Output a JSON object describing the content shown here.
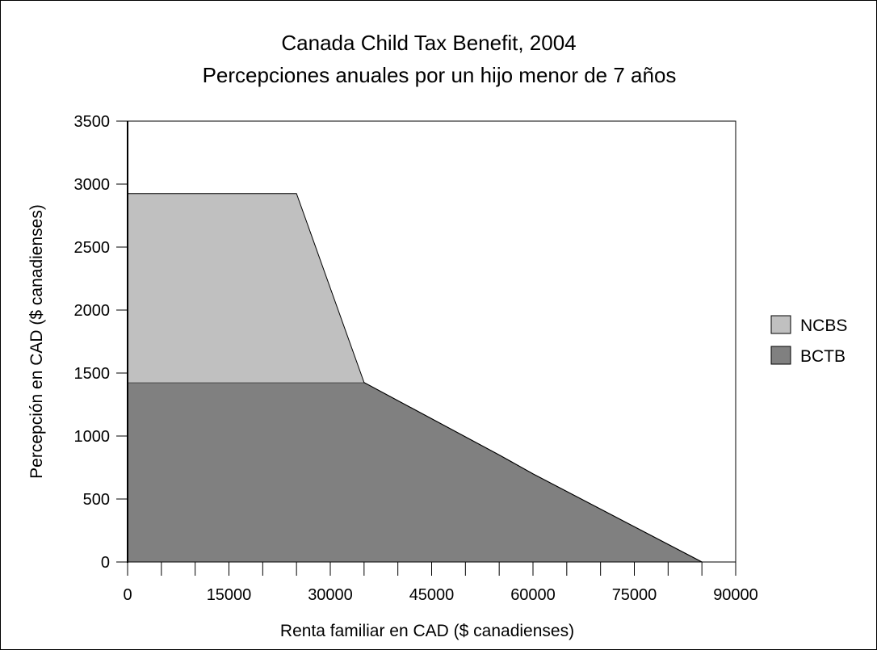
{
  "chart_data": {
    "type": "area",
    "title": "Canada Child Tax Benefit, 2004",
    "subtitle": "Percepciones anuales por un hijo menor de 7 años",
    "xlabel": "Renta familiar en CAD ($ canadienses)",
    "ylabel": "Percepción en CAD ($ canadienses)",
    "xlim": [
      0,
      90000
    ],
    "ylim": [
      0,
      3500
    ],
    "x_ticks": [
      0,
      15000,
      30000,
      45000,
      60000,
      75000,
      90000
    ],
    "y_ticks": [
      0,
      500,
      1000,
      1500,
      2000,
      2500,
      3000,
      3500
    ],
    "x_minor_step": 5000,
    "stacked": true,
    "grid": false,
    "legend_position": "right",
    "series": [
      {
        "name": "BCTB",
        "color": "#808080",
        "x": [
          0,
          35000,
          55000,
          60000,
          85000,
          90000
        ],
        "values": [
          1425,
          1425,
          850,
          700,
          0,
          0
        ]
      },
      {
        "name": "NCBS",
        "color": "#c0c0c0",
        "x": [
          0,
          25000,
          35000,
          90000
        ],
        "values": [
          1500,
          1500,
          0,
          0
        ]
      }
    ]
  }
}
